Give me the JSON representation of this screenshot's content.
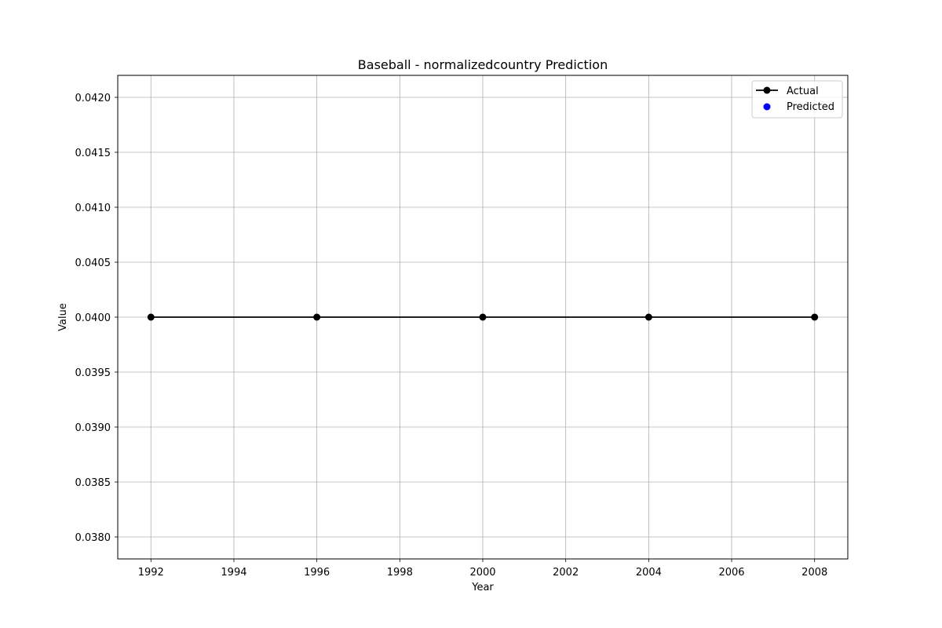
{
  "chart_data": {
    "type": "line",
    "title": "Baseball - normalizedcountry Prediction",
    "xlabel": "Year",
    "ylabel": "Value",
    "x": [
      1992,
      1996,
      2000,
      2004,
      2008
    ],
    "xlim": [
      1991.2,
      2008.8
    ],
    "ylim": [
      0.0378,
      0.0422
    ],
    "x_ticks": [
      1992,
      1994,
      1996,
      1998,
      2000,
      2002,
      2004,
      2006,
      2008
    ],
    "x_tick_labels": [
      "1992",
      "1994",
      "1996",
      "1998",
      "2000",
      "2002",
      "2004",
      "2006",
      "2008"
    ],
    "y_ticks": [
      0.038,
      0.0385,
      0.039,
      0.0395,
      0.04,
      0.0405,
      0.041,
      0.0415,
      0.042
    ],
    "y_tick_labels": [
      "0.0380",
      "0.0385",
      "0.0390",
      "0.0395",
      "0.0400",
      "0.0405",
      "0.0410",
      "0.0415",
      "0.0420"
    ],
    "grid": true,
    "legend_position": "top-right",
    "series": [
      {
        "name": "Actual",
        "kind": "line-with-markers",
        "color": "#000000",
        "values": [
          0.04,
          0.04,
          0.04,
          0.04,
          0.04
        ]
      },
      {
        "name": "Predicted",
        "kind": "scatter",
        "color": "#0000ff",
        "values": []
      }
    ]
  }
}
